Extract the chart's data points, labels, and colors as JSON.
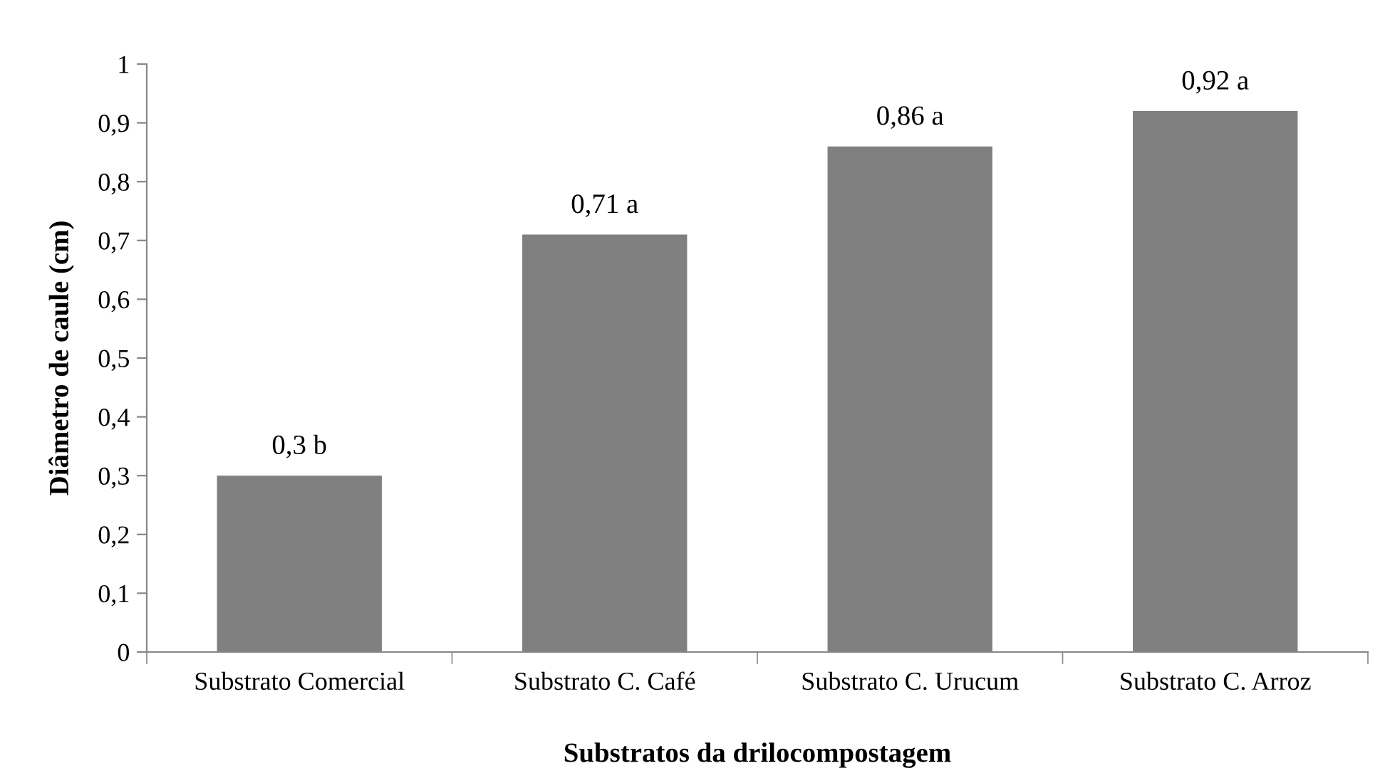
{
  "chart_data": {
    "type": "bar",
    "xlabel": "Substratos da drilocompostagem",
    "ylabel": "Diâmetro de caule (cm)",
    "categories": [
      "Substrato Comercial",
      "Substrato C. Café",
      "Substrato C. Urucum",
      "Substrato C. Arroz"
    ],
    "values": [
      0.3,
      0.71,
      0.86,
      0.92
    ],
    "color": "#808080",
    "value_labels": [
      "0,3 b",
      "0,71 a",
      "0,86 a",
      "0,92 a"
    ],
    "ylim": [
      0,
      1
    ],
    "yticks": [
      0,
      {
        "value": 0.1,
        "label": "0,1"
      },
      {
        "value": 0.2,
        "label": "0,2"
      },
      {
        "value": 0.3,
        "label": "0,3"
      },
      {
        "value": 0.4,
        "label": "0,4"
      },
      {
        "value": 0.5,
        "label": "0,5"
      },
      {
        "value": 0.6,
        "label": "0,6"
      },
      {
        "value": 0.7,
        "label": "0,7"
      },
      {
        "value": 0.8,
        "label": "0,8"
      },
      {
        "value": 0.9,
        "label": "0,9"
      },
      1
    ],
    "grid": false,
    "legend": false
  }
}
